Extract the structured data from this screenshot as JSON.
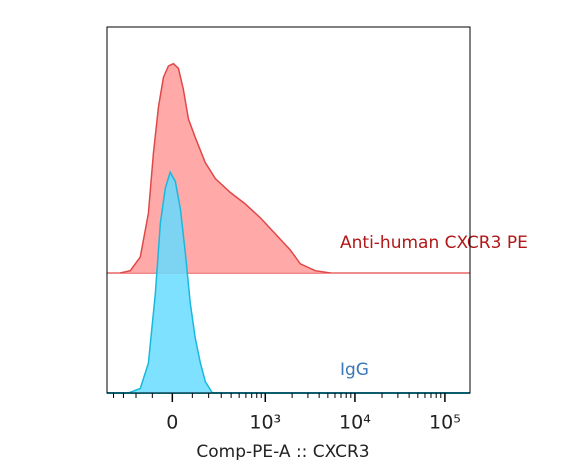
{
  "chart_data": {
    "type": "histogram-overlay",
    "x_label": "Comp-PE-A :: CXCR3",
    "x_scale": "biexponential",
    "xlim": [
      -480,
      190000
    ],
    "xticks": [
      {
        "value": 0,
        "label": "0"
      },
      {
        "value": 1000,
        "label": "10³"
      },
      {
        "value": 10000,
        "label": "10⁴"
      },
      {
        "value": 100000,
        "label": "10⁵"
      }
    ],
    "minor_xticks": [
      -400,
      -300,
      -200,
      -100,
      100,
      200,
      300,
      400,
      500,
      600,
      700,
      800,
      900,
      2000,
      3000,
      4000,
      5000,
      6000,
      7000,
      8000,
      9000,
      20000,
      30000,
      40000,
      50000,
      60000,
      70000,
      80000,
      90000
    ],
    "ylim": [
      0,
      100
    ],
    "series": [
      {
        "name": "Anti-human CXCR3 PE",
        "color": "#e04848",
        "fill": "#ff9a9a",
        "label_color": "#b01818",
        "x": [
          -331,
          -242,
          -171,
          -122,
          -94,
          -68,
          -43,
          -19,
          5,
          29,
          53,
          79,
          116,
          177,
          250,
          392,
          591,
          877,
          1296,
          1909,
          2468,
          3628,
          5330
        ],
        "values": [
          0,
          1,
          7,
          26,
          52,
          72,
          85,
          90,
          91,
          89,
          80,
          67,
          59,
          48,
          41,
          35,
          30,
          24,
          17,
          10,
          4,
          1,
          0
        ]
      },
      {
        "name": "IgG",
        "color": "#1ab8dc",
        "fill": "#66dcff",
        "label_color": "#3a78b8",
        "x": [
          -258,
          -171,
          -122,
          -84,
          -58,
          -34,
          -10,
          14,
          39,
          63,
          89,
          116,
          146,
          177,
          227
        ],
        "values": [
          0,
          2,
          13,
          43,
          74,
          89,
          96,
          92,
          80,
          61,
          39,
          24,
          13,
          5,
          0
        ]
      }
    ]
  }
}
